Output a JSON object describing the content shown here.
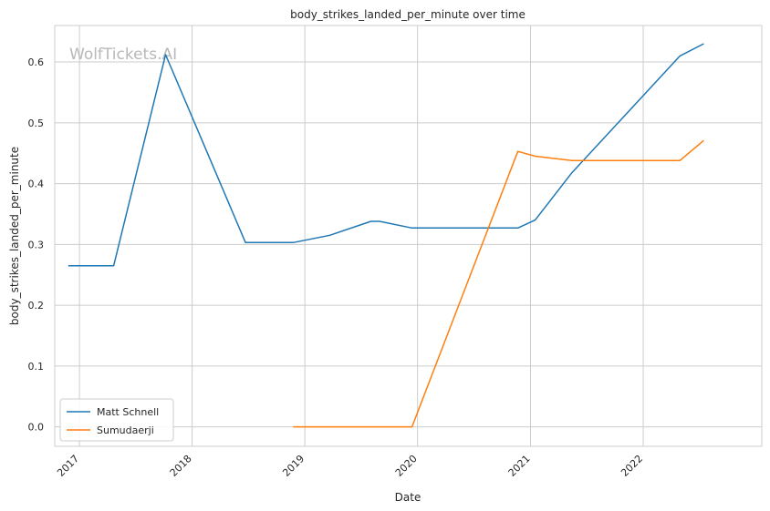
{
  "chart_data": {
    "type": "line",
    "title": "body_strikes_landed_per_minute over time",
    "xlabel": "Date",
    "ylabel": "body_strikes_landed_per_minute",
    "watermark": "WolfTickets.AI",
    "x_ticks": [
      "2017",
      "2018",
      "2019",
      "2020",
      "2021",
      "2022"
    ],
    "y_ticks": [
      "0.0",
      "0.1",
      "0.2",
      "0.3",
      "0.4",
      "0.5",
      "0.6"
    ],
    "ylim": [
      -0.032,
      0.66
    ],
    "xlim": [
      "2016-10-13",
      "2023-01-20"
    ],
    "grid": true,
    "legend": "lower-left",
    "series": [
      {
        "name": "Matt Schnell",
        "color": "#1f77b4",
        "points": [
          [
            "2016-11-26",
            0.265
          ],
          [
            "2017-04-22",
            0.265
          ],
          [
            "2017-10-07",
            0.612
          ],
          [
            "2018-06-23",
            0.303
          ],
          [
            "2018-11-24",
            0.303
          ],
          [
            "2019-03-23",
            0.315
          ],
          [
            "2019-08-03",
            0.338
          ],
          [
            "2019-08-31",
            0.338
          ],
          [
            "2019-12-14",
            0.327
          ],
          [
            "2020-11-21",
            0.327
          ],
          [
            "2021-01-16",
            0.34
          ],
          [
            "2021-05-15",
            0.418
          ],
          [
            "2022-04-30",
            0.61
          ],
          [
            "2022-07-16",
            0.63
          ]
        ]
      },
      {
        "name": "Sumudaerji",
        "color": "#ff7f0e",
        "points": [
          [
            "2018-11-24",
            0.0
          ],
          [
            "2019-12-14",
            0.0
          ],
          [
            "2020-11-21",
            0.453
          ],
          [
            "2021-01-16",
            0.445
          ],
          [
            "2021-05-15",
            0.438
          ],
          [
            "2022-04-30",
            0.438
          ],
          [
            "2022-07-16",
            0.471
          ]
        ]
      }
    ]
  }
}
